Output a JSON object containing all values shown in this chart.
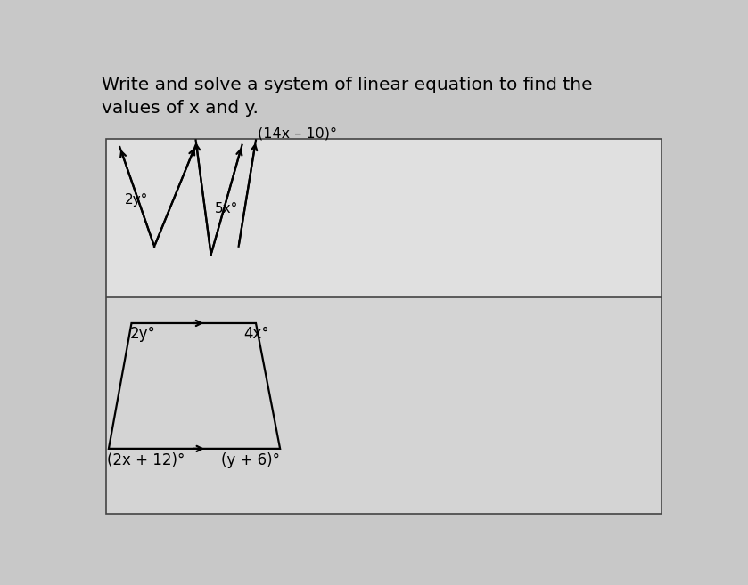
{
  "title": "Write and solve a system of linear equation to find the\nvalues of x and y.",
  "title_fontsize": 14.5,
  "bg_color": "#c8c8c8",
  "box1_color": "#e0e0e0",
  "box2_color": "#d4d4d4",
  "text_color": "#000000",
  "label_14x": "(14x – 10)°",
  "label_2y_top": "2y°",
  "label_5x": "5x°",
  "label_2y_bot": "2y°",
  "label_4x": "4x°",
  "label_2x12": "(2x + 12)°",
  "label_y6": "(y + 6)°"
}
